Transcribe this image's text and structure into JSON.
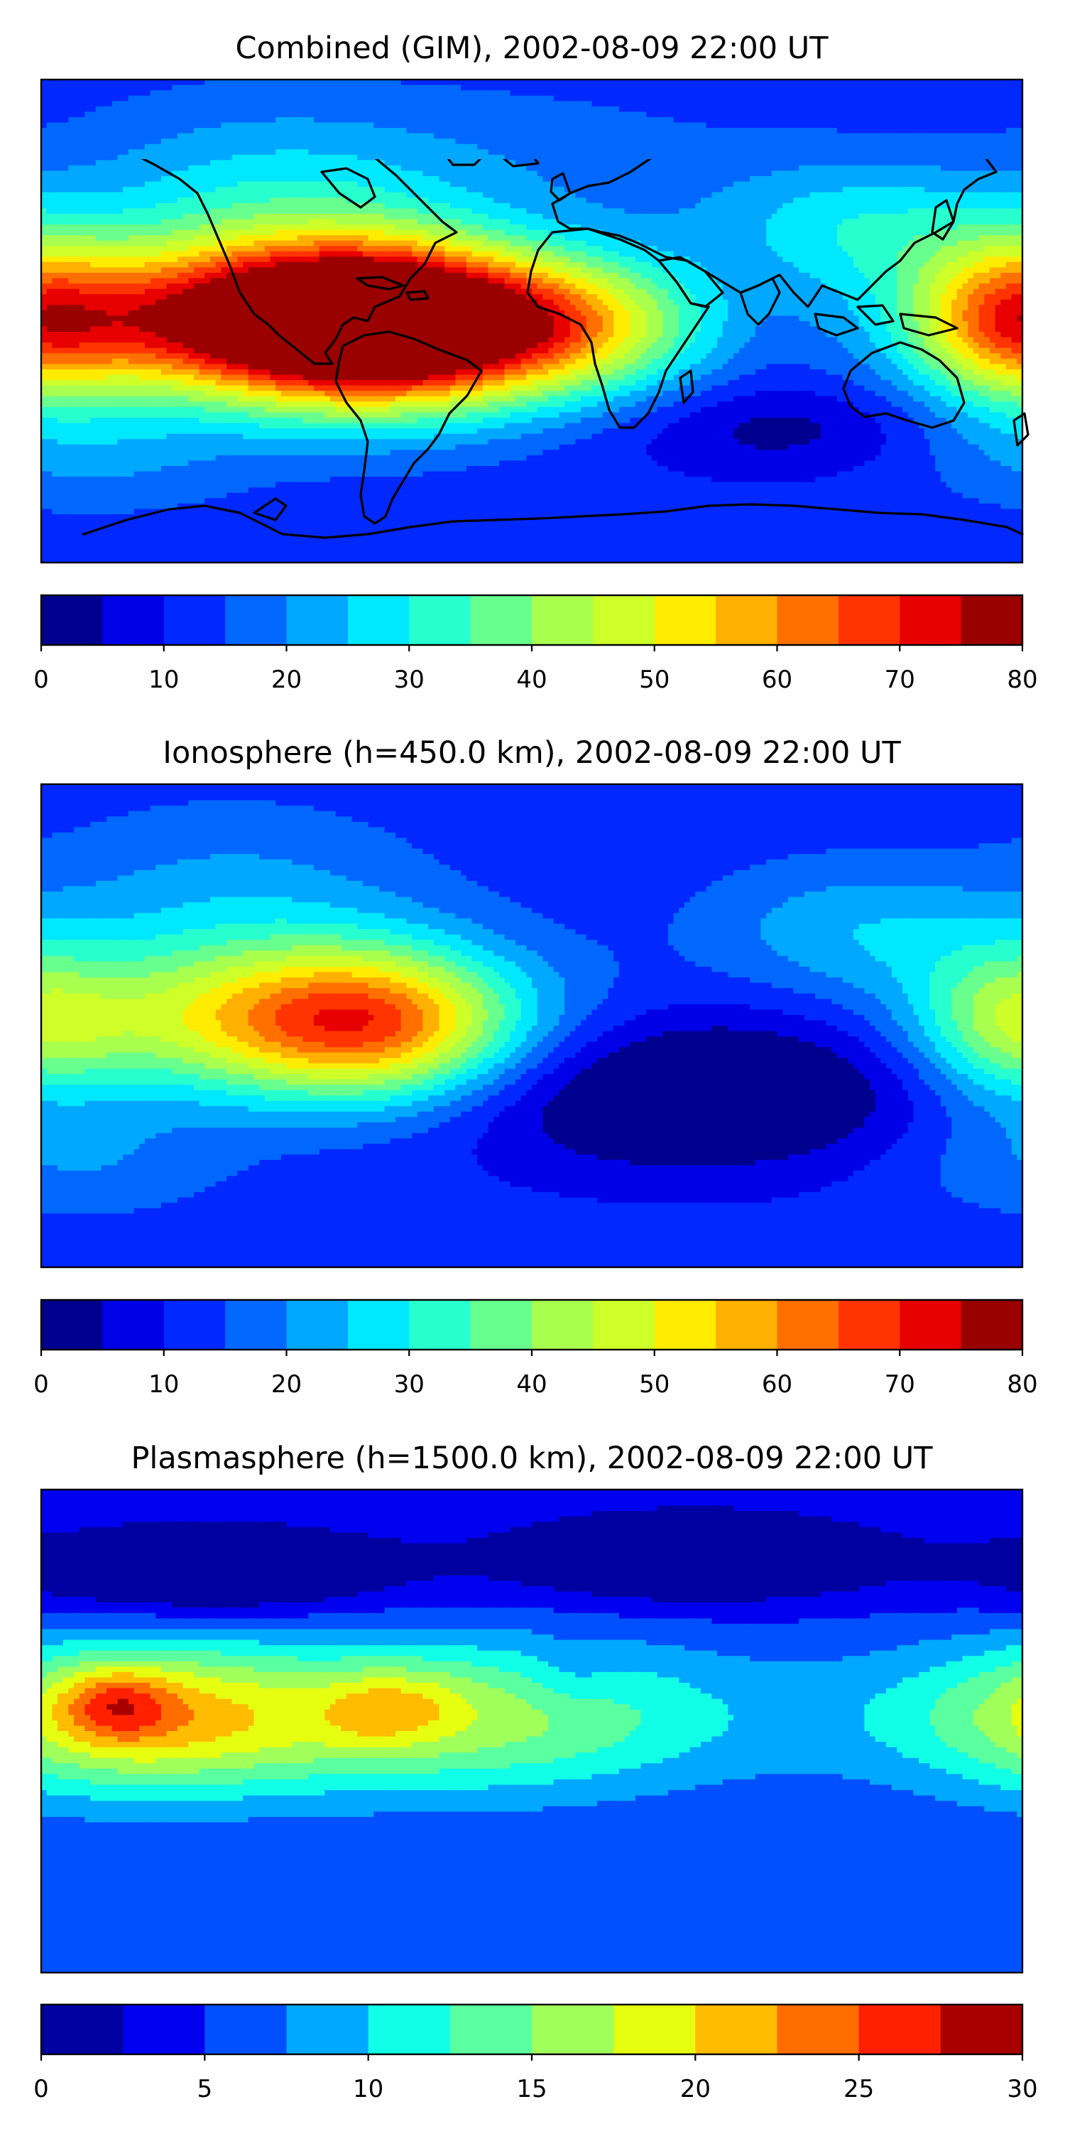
{
  "chart_data": [
    {
      "type": "heatmap",
      "title": "Combined (GIM), 2002-08-09 22:00 UT",
      "colorbar": {
        "vmin": 0,
        "vmax": 80,
        "step": 5,
        "ticks": [
          0,
          10,
          20,
          30,
          40,
          50,
          60,
          70,
          80
        ],
        "colors": [
          "#00008e",
          "#0000e8",
          "#0028ff",
          "#0068ff",
          "#00a8ff",
          "#00e8ff",
          "#28ffce",
          "#68ff8e",
          "#a8ff4e",
          "#ceff28",
          "#ffec00",
          "#ffb000",
          "#ff7000",
          "#ff3400",
          "#e80000",
          "#9a0000"
        ]
      },
      "features": [
        {
          "lon": -95,
          "lat": 0,
          "value": 75,
          "sx": 70,
          "sy": 20
        },
        {
          "lon": -55,
          "lat": -2,
          "value": 62,
          "sx": 40,
          "sy": 22
        },
        {
          "lon": 15,
          "lat": -2,
          "value": 40,
          "sx": 35,
          "sy": 18
        },
        {
          "lon": 175,
          "lat": 0,
          "value": 44,
          "sx": 25,
          "sy": 22
        },
        {
          "lon": 120,
          "lat": 35,
          "value": 28,
          "sx": 40,
          "sy": 18
        },
        {
          "lon": -100,
          "lat": 45,
          "value": 26,
          "sx": 50,
          "sy": 25
        },
        {
          "lon": 0,
          "lat": 60,
          "value": 17,
          "sx": 60,
          "sy": 20
        },
        {
          "lon": 90,
          "lat": -40,
          "value": 3,
          "sx": 40,
          "sy": 12
        },
        {
          "lon": -160,
          "lat": -50,
          "value": 20,
          "sx": 40,
          "sy": 15
        }
      ],
      "background": 12
    },
    {
      "type": "heatmap",
      "title": "Ionosphere  (h=450.0 km), 2002-08-09 22:00 UT",
      "colorbar": {
        "vmin": 0,
        "vmax": 80,
        "step": 5,
        "ticks": [
          0,
          10,
          20,
          30,
          40,
          50,
          60,
          70,
          80
        ],
        "colors": [
          "#00008e",
          "#0000e8",
          "#0028ff",
          "#0068ff",
          "#00a8ff",
          "#00e8ff",
          "#28ffce",
          "#68ff8e",
          "#a8ff4e",
          "#ceff28",
          "#ffec00",
          "#ffb000",
          "#ff7000",
          "#ff3400",
          "#e80000",
          "#9a0000"
        ]
      },
      "features": [
        {
          "lon": -95,
          "lat": 2,
          "value": 48,
          "sx": 60,
          "sy": 20
        },
        {
          "lon": -55,
          "lat": 0,
          "value": 40,
          "sx": 35,
          "sy": 20
        },
        {
          "lon": 175,
          "lat": 0,
          "value": 35,
          "sx": 25,
          "sy": 20
        },
        {
          "lon": 120,
          "lat": 35,
          "value": 24,
          "sx": 40,
          "sy": 18
        },
        {
          "lon": -110,
          "lat": 45,
          "value": 22,
          "sx": 50,
          "sy": 25
        },
        {
          "lon": 60,
          "lat": -25,
          "value": -6,
          "sx": 60,
          "sy": 20
        },
        {
          "lon": -170,
          "lat": -50,
          "value": 20,
          "sx": 40,
          "sy": 15
        }
      ],
      "background": 12
    },
    {
      "type": "heatmap",
      "title": "Plasmasphere (h=1500.0 km), 2002-08-09 22:00 UT",
      "colorbar": {
        "vmin": 0,
        "vmax": 30,
        "step": 2.5,
        "ticks": [
          0,
          5,
          10,
          15,
          20,
          25,
          30
        ],
        "colors": [
          "#0000a0",
          "#0000f0",
          "#0050ff",
          "#00a8ff",
          "#10ffe6",
          "#5affa0",
          "#a0ff5a",
          "#e6ff10",
          "#ffbc00",
          "#ff6c00",
          "#ff2000",
          "#a80000"
        ]
      },
      "features": [
        {
          "lon": -150,
          "lat": 5,
          "value": 13,
          "sx": 40,
          "sy": 20
        },
        {
          "lon": -120,
          "lat": 5,
          "value": 11,
          "sx": 40,
          "sy": 20
        },
        {
          "lon": -75,
          "lat": 5,
          "value": 10,
          "sx": 40,
          "sy": 20
        },
        {
          "lon": -30,
          "lat": 5,
          "value": 11,
          "sx": 40,
          "sy": 20
        },
        {
          "lon": 15,
          "lat": 5,
          "value": 10,
          "sx": 40,
          "sy": 20
        },
        {
          "lon": 60,
          "lat": 5,
          "value": 7,
          "sx": 40,
          "sy": 20
        },
        {
          "lon": 105,
          "lat": 5,
          "value": 6,
          "sx": 40,
          "sy": 20
        },
        {
          "lon": 150,
          "lat": 5,
          "value": 7,
          "sx": 40,
          "sy": 20
        },
        {
          "lon": 180,
          "lat": 5,
          "value": 8,
          "sx": 40,
          "sy": 20
        },
        {
          "lon": -152,
          "lat": 10,
          "value": 12,
          "sx": 14,
          "sy": 9
        },
        {
          "lon": -60,
          "lat": 8,
          "value": 9,
          "sx": 12,
          "sy": 10
        },
        {
          "lon": -40,
          "lat": 10,
          "value": 8,
          "sx": 12,
          "sy": 10
        },
        {
          "lon": 15,
          "lat": 20,
          "value": 3,
          "sx": 12,
          "sy": 10
        },
        {
          "lon": -120,
          "lat": 60,
          "value": -3,
          "sx": 50,
          "sy": 12
        },
        {
          "lon": 60,
          "lat": 65,
          "value": -3,
          "sx": 50,
          "sy": 12
        }
      ],
      "background": 5
    }
  ]
}
